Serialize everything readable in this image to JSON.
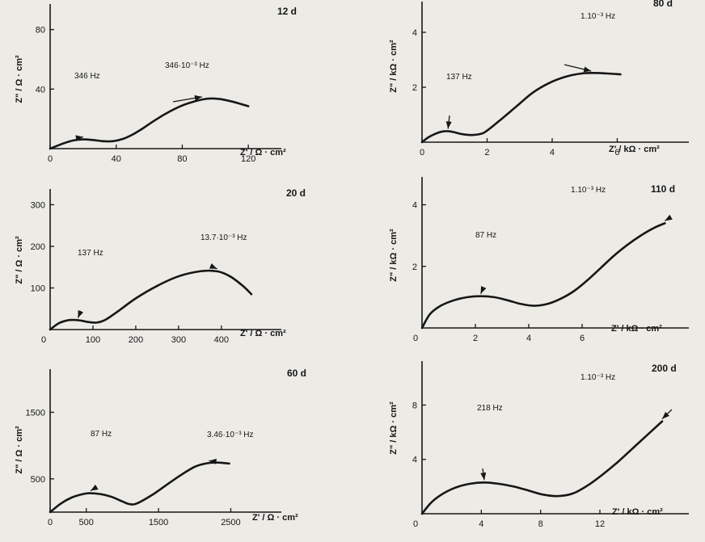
{
  "chart_data": [
    {
      "type": "line",
      "panel_label": "12 d",
      "xlabel": "Z' / Ω · cm²",
      "ylabel": "Z\" / Ω · cm²",
      "xlim": [
        0,
        140
      ],
      "ylim": [
        0,
        95
      ],
      "x_ticks": [
        "0",
        "40",
        "80",
        "120"
      ],
      "x_tick_values": [
        0,
        40,
        80,
        120
      ],
      "y_ticks": [
        "40",
        "80"
      ],
      "y_tick_values": [
        40,
        80
      ],
      "series": [
        {
          "x": [
            0,
            8,
            14,
            20,
            26,
            32,
            38,
            44,
            50,
            56,
            62,
            70,
            80,
            90,
            96,
            102,
            108,
            114,
            120
          ],
          "y": [
            0,
            3.5,
            5.5,
            6.2,
            5.8,
            5,
            5,
            6.5,
            9.5,
            13.5,
            18,
            23.5,
            29,
            32.5,
            33.6,
            33.4,
            32.2,
            30.5,
            28.5
          ]
        }
      ],
      "annotations": [
        {
          "text": "346 Hz",
          "target": [
            20,
            6.2
          ]
        },
        {
          "text": "346·10⁻³ Hz",
          "target": [
            92,
            33.2
          ]
        }
      ]
    },
    {
      "type": "line",
      "panel_label": "20 d",
      "xlabel": "Z' / Ω · cm²",
      "ylabel": "Z\" / Ω · cm²",
      "xlim": [
        0,
        540
      ],
      "ylim": [
        0,
        330
      ],
      "x_ticks": [
        "100",
        "200",
        "300",
        "400"
      ],
      "x_tick_values": [
        100,
        200,
        300,
        400
      ],
      "y_ticks": [
        "100",
        "200",
        "300"
      ],
      "y_tick_values": [
        100,
        200,
        300
      ],
      "series": [
        {
          "x": [
            0,
            20,
            40,
            60,
            75,
            90,
            110,
            130,
            160,
            200,
            250,
            300,
            350,
            390,
            420,
            450,
            470
          ],
          "y": [
            0,
            15,
            22,
            23,
            21,
            18,
            17,
            24,
            45,
            75,
            105,
            128,
            140,
            140,
            128,
            105,
            85
          ]
        }
      ],
      "annotations": [
        {
          "text": "137 Hz",
          "target": [
            65,
            22
          ]
        },
        {
          "text": "13.7·10⁻³ Hz",
          "target": [
            390,
            140
          ]
        }
      ]
    },
    {
      "type": "line",
      "panel_label": "60 d",
      "xlabel": "Z' / Ω · cm²",
      "ylabel": "Z\" / Ω · cm²",
      "xlim": [
        0,
        3200
      ],
      "ylim": [
        0,
        2100
      ],
      "x_ticks": [
        "0",
        "500",
        "1500",
        "2500"
      ],
      "x_tick_values": [
        0,
        500,
        1500,
        2500
      ],
      "y_ticks": [
        "500",
        "1500"
      ],
      "y_tick_values": [
        500,
        1500
      ],
      "series": [
        {
          "x": [
            0,
            150,
            300,
            450,
            550,
            700,
            850,
            1000,
            1100,
            1200,
            1400,
            1600,
            1800,
            2000,
            2150,
            2300,
            2400,
            2480
          ],
          "y": [
            0,
            130,
            220,
            270,
            285,
            270,
            230,
            160,
            120,
            130,
            250,
            400,
            550,
            680,
            730,
            745,
            738,
            730
          ]
        }
      ],
      "annotations": [
        {
          "text": "87 Hz",
          "target": [
            560,
            285
          ]
        },
        {
          "text": "3.46·10⁻³ Hz",
          "target": [
            2200,
            735
          ]
        }
      ]
    },
    {
      "type": "line",
      "panel_label": "80 d",
      "xlabel": "Z' / kΩ · cm²",
      "ylabel": "Z\" / kΩ · cm²",
      "xlim": [
        0,
        8.2
      ],
      "ylim": [
        0,
        5
      ],
      "x_ticks": [
        "0",
        "2",
        "4",
        "6"
      ],
      "x_tick_values": [
        0,
        2,
        4,
        6
      ],
      "y_ticks": [
        "2",
        "4"
      ],
      "y_tick_values": [
        2,
        4
      ],
      "series": [
        {
          "x": [
            0,
            0.2,
            0.4,
            0.6,
            0.8,
            1,
            1.2,
            1.5,
            1.8,
            2,
            2.4,
            2.9,
            3.4,
            3.9,
            4.4,
            4.9,
            5.3,
            5.7,
            6.1
          ],
          "y": [
            0,
            0.18,
            0.3,
            0.38,
            0.4,
            0.36,
            0.3,
            0.26,
            0.3,
            0.42,
            0.8,
            1.3,
            1.8,
            2.15,
            2.38,
            2.5,
            2.52,
            2.5,
            2.47
          ]
        }
      ],
      "annotations": [
        {
          "text": "137 Hz",
          "target": [
            0.8,
            0.4
          ]
        },
        {
          "text": "1.10⁻³ Hz",
          "target": [
            5.2,
            2.5
          ]
        }
      ]
    },
    {
      "type": "line",
      "panel_label": "110 d",
      "xlabel": "Z' / kΩ · cm²",
      "ylabel": "Z\" / kΩ · cm²",
      "xlim": [
        0,
        10
      ],
      "ylim": [
        0,
        4.8
      ],
      "x_ticks": [
        "2",
        "4",
        "6"
      ],
      "x_tick_values": [
        2,
        4,
        6
      ],
      "y_ticks": [
        "2",
        "4"
      ],
      "y_tick_values": [
        2,
        4
      ],
      "series": [
        {
          "x": [
            0,
            0.3,
            0.7,
            1.2,
            1.7,
            2.2,
            2.7,
            3.2,
            3.7,
            4.2,
            4.7,
            5.2,
            5.7,
            6.2,
            6.7,
            7.2,
            7.7,
            8.2,
            8.7,
            9.1
          ],
          "y": [
            0,
            0.45,
            0.72,
            0.9,
            1.0,
            1.03,
            1.0,
            0.9,
            0.78,
            0.72,
            0.78,
            0.95,
            1.2,
            1.55,
            1.95,
            2.35,
            2.7,
            3.0,
            3.25,
            3.4
          ]
        }
      ],
      "annotations": [
        {
          "text": "87 Hz",
          "target": [
            2.2,
            1.03
          ]
        },
        {
          "text": "1.10⁻³ Hz",
          "target": [
            9.1,
            3.4
          ]
        }
      ]
    },
    {
      "type": "line",
      "panel_label": "200 d",
      "xlabel": "Z' / kΩ · cm²",
      "ylabel": "Z\" / kΩ · cm²",
      "xlim": [
        0,
        18
      ],
      "ylim": [
        0,
        11
      ],
      "x_ticks": [
        "4",
        "8",
        "12"
      ],
      "x_tick_values": [
        4,
        8,
        12
      ],
      "y_ticks": [
        "4",
        "8"
      ],
      "y_tick_values": [
        4,
        8
      ],
      "series": [
        {
          "x": [
            0,
            0.6,
            1.3,
            2.2,
            3.2,
            4.2,
            5.2,
            6.2,
            7.2,
            8.2,
            9.2,
            10.2,
            11.2,
            12.2,
            13.2,
            14.2,
            15.2,
            16.2
          ],
          "y": [
            0,
            0.8,
            1.4,
            1.9,
            2.2,
            2.3,
            2.2,
            2.0,
            1.7,
            1.4,
            1.3,
            1.5,
            2.1,
            2.9,
            3.8,
            4.8,
            5.8,
            6.8
          ]
        }
      ],
      "annotations": [
        {
          "text": "218 Hz",
          "target": [
            4.2,
            2.3
          ]
        },
        {
          "text": "1.10⁻³ Hz",
          "target": [
            16.2,
            6.8
          ]
        }
      ]
    }
  ]
}
